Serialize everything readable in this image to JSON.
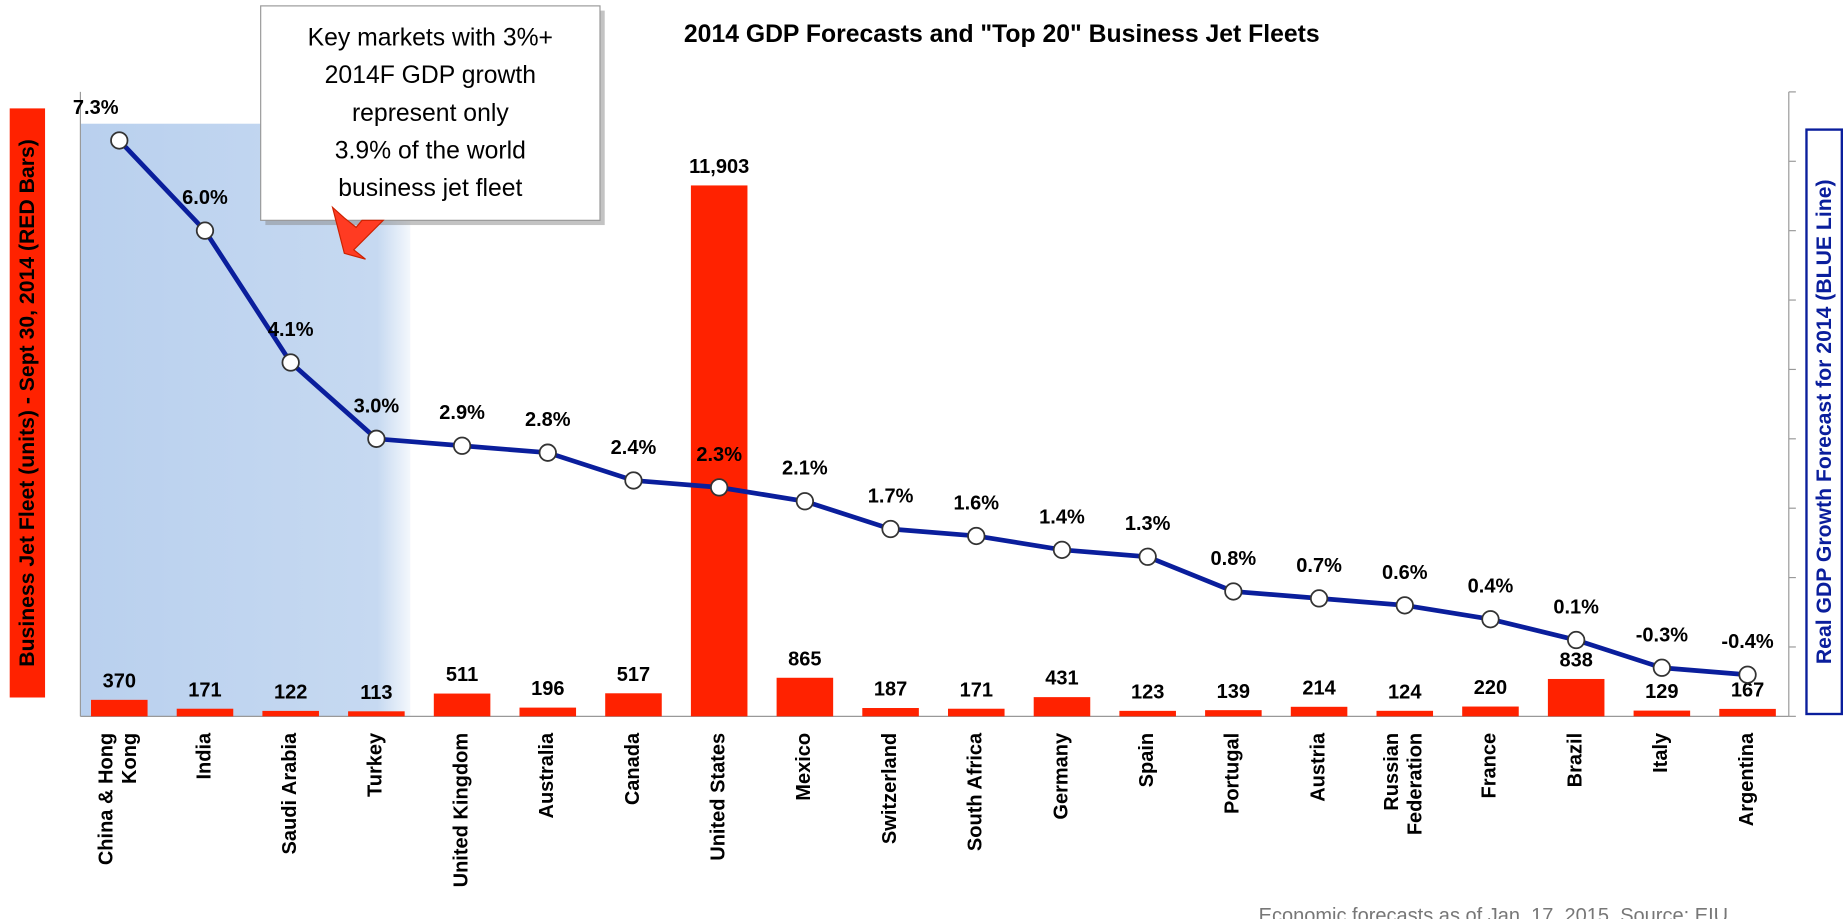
{
  "chart_data": {
    "type": "bar_line",
    "title": "2014 GDP Forecasts and \"Top 20\" Business Jet Fleets",
    "categories": [
      "China & Hong Kong",
      "India",
      "Saudi Arabia",
      "Turkey",
      "United Kingdom",
      "Australia",
      "Canada",
      "United States",
      "Mexico",
      "Switzerland",
      "South Africa",
      "Germany",
      "Spain",
      "Portugal",
      "Austria",
      "Russian Federation",
      "France",
      "Brazil",
      "Italy",
      "Argentina"
    ],
    "series": [
      {
        "name": "Business Jet Fleet (units) - Sept 30, 2014 (RED Bars)",
        "color": "#ff2200",
        "values": [
          370,
          171,
          122,
          113,
          511,
          196,
          517,
          11903,
          865,
          187,
          171,
          431,
          123,
          139,
          214,
          124,
          220,
          838,
          129,
          167
        ],
        "value_labels": [
          "370",
          "171",
          "122",
          "113",
          "511",
          "196",
          "517",
          "11,903",
          "865",
          "187",
          "171",
          "431",
          "123",
          "139",
          "214",
          "124",
          "220",
          "838",
          "129",
          "167"
        ]
      },
      {
        "name": "Real GDP Growth Forecast for 2014 (BLUE Line)",
        "color": "#0a1e9c",
        "axis": "y2",
        "values": [
          7.3,
          6.0,
          4.1,
          3.0,
          2.9,
          2.8,
          2.4,
          2.3,
          2.1,
          1.7,
          1.6,
          1.4,
          1.3,
          0.8,
          0.7,
          0.6,
          0.4,
          0.1,
          -0.3,
          -0.4
        ],
        "value_labels": [
          "7.3%",
          "6.0%",
          "4.1%",
          "3.0%",
          "2.9%",
          "2.8%",
          "2.4%",
          "2.3%",
          "2.1%",
          "1.7%",
          "1.6%",
          "1.4%",
          "1.3%",
          "0.8%",
          "0.7%",
          "0.6%",
          "0.4%",
          "0.1%",
          "-0.3%",
          "-0.4%"
        ]
      }
    ],
    "ylim": [
      0,
      14000
    ],
    "y2lim": [
      -1,
      8
    ],
    "y2ticks": [
      -1,
      0,
      1,
      2,
      3,
      4,
      5,
      6,
      7,
      8
    ],
    "annotation": [
      "Key markets with 3%+",
      "2014F GDP growth",
      "represent only",
      "3.9% of the world",
      "business jet fleet"
    ],
    "source": "Economic forecasts as of Jan. 17, 2015. Source: EIU"
  }
}
